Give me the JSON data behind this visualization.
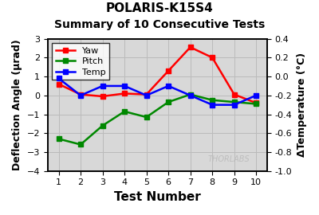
{
  "title1": "POLARIS-K15S4",
  "title2": "Summary of 10 Consecutive Tests",
  "xlabel": "Test Number",
  "ylabel_left": "Deflection Angle (μrad)",
  "ylabel_right": "ΔTemperature (°C)",
  "x": [
    1,
    2,
    3,
    4,
    5,
    6,
    7,
    8,
    9,
    10
  ],
  "yaw": [
    0.6,
    0.05,
    -0.05,
    0.1,
    0.05,
    1.3,
    2.55,
    2.0,
    0.05,
    -0.4
  ],
  "pitch": [
    -2.3,
    -2.6,
    -1.6,
    -0.85,
    -1.15,
    -0.35,
    0.05,
    -0.25,
    -0.35,
    -0.45
  ],
  "temp": [
    -0.02,
    -0.2,
    -0.1,
    -0.1,
    -0.2,
    -0.1,
    -0.2,
    -0.3,
    -0.3,
    -0.2
  ],
  "yaw_color": "#ff0000",
  "pitch_color": "#008800",
  "temp_color": "#0000ff",
  "bg_color": "#ffffff",
  "plot_bg_color": "#d8d8d8",
  "grid_color": "#bbbbbb",
  "ylim_left": [
    -4,
    3
  ],
  "ylim_right": [
    -1.0,
    0.4
  ],
  "yticks_left": [
    -4,
    -3,
    -2,
    -1,
    0,
    1,
    2,
    3
  ],
  "yticks_right": [
    -1.0,
    -0.8,
    -0.6,
    -0.4,
    -0.2,
    0.0,
    0.2,
    0.4
  ],
  "watermark": "THORLABS",
  "marker": "s",
  "markersize": 4,
  "linewidth": 1.8,
  "title_fontsize": 11,
  "subtitle_fontsize": 10,
  "xlabel_fontsize": 11,
  "ylabel_fontsize": 9,
  "tick_fontsize": 8,
  "legend_fontsize": 8
}
